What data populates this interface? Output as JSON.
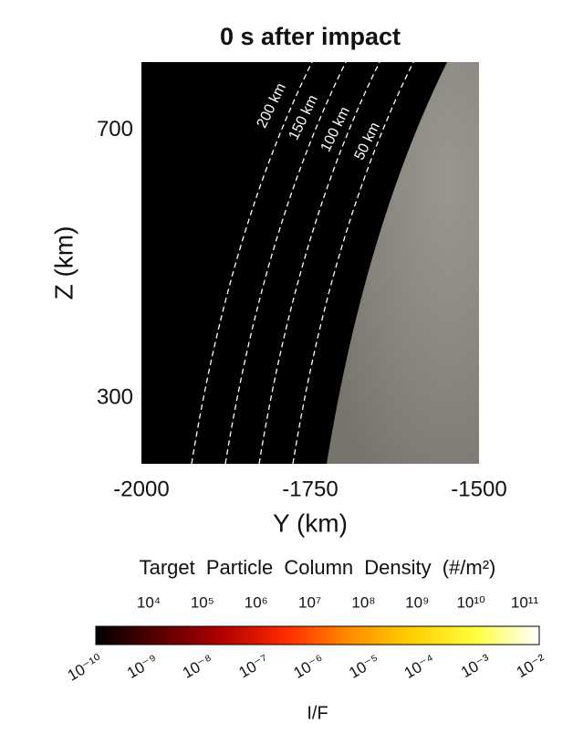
{
  "chart_data": {
    "type": "image",
    "title": "0 s after impact",
    "xlabel": "Y (km)",
    "ylabel": "Z (km)",
    "xlim": [
      -2000,
      -1500
    ],
    "ylim": [
      202,
      802
    ],
    "xticks": [
      -2000,
      -1750,
      -1500
    ],
    "yticks": [
      300,
      700
    ],
    "surface_color": "#8c8880",
    "background_color": "#000000",
    "contours": [
      "200 km",
      "150 km",
      "100 km",
      "50 km"
    ],
    "colorbar": {
      "scale": "log",
      "label": "Target Particle Column Density (#/m²)",
      "lim": [
        1035,
        187000000000
      ],
      "ticks": [
        {
          "value": 10000,
          "label": "10⁴"
        },
        {
          "value": 100000,
          "label": "10⁵"
        },
        {
          "value": 1000000,
          "label": "10⁶"
        },
        {
          "value": 10000000,
          "label": "10⁷"
        },
        {
          "value": 100000000,
          "label": "10⁸"
        },
        {
          "value": 1000000000,
          "label": "10⁹"
        },
        {
          "value": 10000000000,
          "label": "10¹⁰"
        },
        {
          "value": 100000000000,
          "label": "10¹¹"
        }
      ],
      "lower_label": "I/F",
      "lower_lim": [
        1e-10,
        0.01
      ],
      "lower_ticks": [
        {
          "value": 1e-10,
          "label": "10⁻¹⁰"
        },
        {
          "value": 1e-09,
          "label": "10⁻⁹"
        },
        {
          "value": 1e-08,
          "label": "10⁻⁸"
        },
        {
          "value": 1e-07,
          "label": "10⁻⁷"
        },
        {
          "value": 1e-06,
          "label": "10⁻⁶"
        },
        {
          "value": 1e-05,
          "label": "10⁻⁵"
        },
        {
          "value": 0.0001,
          "label": "10⁻⁴"
        },
        {
          "value": 0.001,
          "label": "10⁻³"
        },
        {
          "value": 0.01,
          "label": "10⁻²"
        }
      ],
      "colormap": [
        "#000000",
        "#5a0000",
        "#b00000",
        "#ff2a00",
        "#ff8c00",
        "#ffd000",
        "#ffff40",
        "#ffffff"
      ]
    }
  }
}
